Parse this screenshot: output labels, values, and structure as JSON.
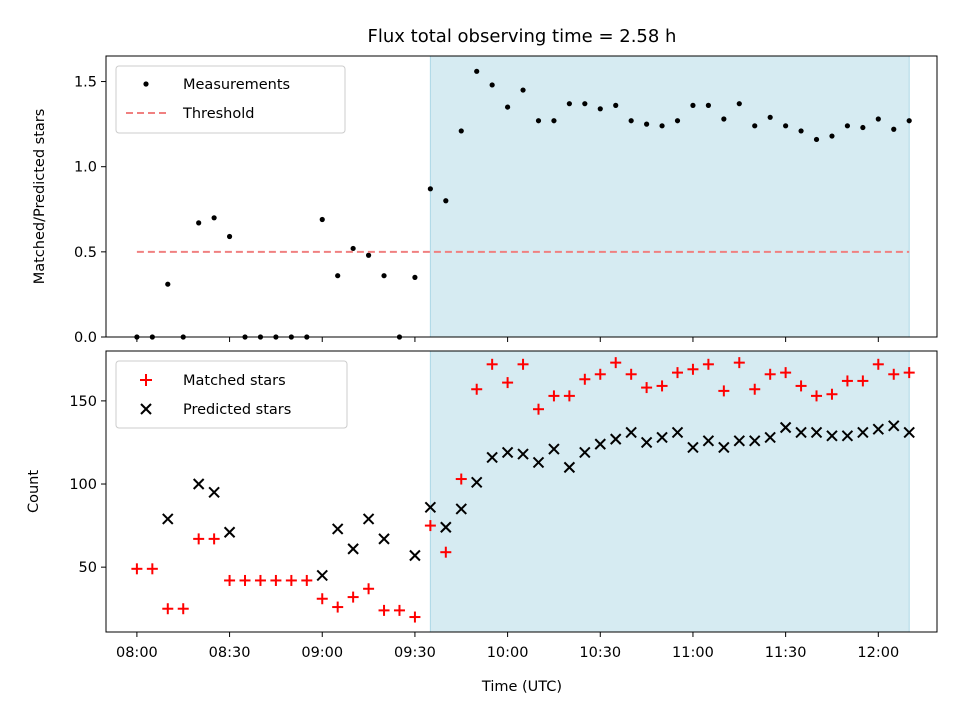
{
  "chart_data": {
    "type": "scatter",
    "title": "Flux total observing time = 2.58 h",
    "xlabel": "Time (UTC)",
    "x_ticks": [
      "08:00",
      "08:30",
      "09:00",
      "09:30",
      "10:00",
      "10:30",
      "11:00",
      "11:30",
      "12:00"
    ],
    "shaded_interval": {
      "start": "09:35",
      "end": "12:10",
      "color": "#add8e6"
    },
    "panels": [
      {
        "name": "ratio",
        "ylabel": "Matched/Predicted stars",
        "ylim": [
          0,
          1.65
        ],
        "y_ticks": [
          0.0,
          0.5,
          1.0,
          1.5
        ],
        "y_tick_labels": [
          "0.0",
          "0.5",
          "1.0",
          "1.5"
        ],
        "legend": "top-left",
        "series": [
          {
            "name": "Measurements",
            "marker": "dot",
            "color": "#000000",
            "x": [
              "08:00",
              "08:05",
              "08:10",
              "08:15",
              "08:20",
              "08:25",
              "08:30",
              "08:35",
              "08:40",
              "08:45",
              "08:50",
              "08:55",
              "09:00",
              "09:05",
              "09:10",
              "09:15",
              "09:20",
              "09:25",
              "09:30",
              "09:35",
              "09:40",
              "09:45",
              "09:50",
              "09:55",
              "10:00",
              "10:05",
              "10:10",
              "10:15",
              "10:20",
              "10:25",
              "10:30",
              "10:35",
              "10:40",
              "10:45",
              "10:50",
              "10:55",
              "11:00",
              "11:05",
              "11:10",
              "11:15",
              "11:20",
              "11:25",
              "11:30",
              "11:35",
              "11:40",
              "11:45",
              "11:50",
              "11:55",
              "12:00",
              "12:05",
              "12:10"
            ],
            "y": [
              0.0,
              0.0,
              0.31,
              0.0,
              0.67,
              0.7,
              0.59,
              0.0,
              0.0,
              0.0,
              0.0,
              0.0,
              0.69,
              0.36,
              0.52,
              0.48,
              0.36,
              0.0,
              0.35,
              0.87,
              0.8,
              1.21,
              1.56,
              1.48,
              1.35,
              1.45,
              1.27,
              1.27,
              1.37,
              1.37,
              1.34,
              1.36,
              1.27,
              1.25,
              1.24,
              1.27,
              1.36,
              1.36,
              1.28,
              1.37,
              1.24,
              1.29,
              1.24,
              1.21,
              1.16,
              1.18,
              1.24,
              1.23,
              1.28,
              1.22,
              1.27
            ]
          },
          {
            "name": "Threshold",
            "marker": "dashed-line",
            "color": "#f08080",
            "x": [
              "08:00",
              "12:10"
            ],
            "y": [
              0.5,
              0.5
            ]
          }
        ]
      },
      {
        "name": "counts",
        "ylabel": "Count",
        "ylim": [
          11,
          180
        ],
        "y_ticks": [
          50,
          100,
          150
        ],
        "y_tick_labels": [
          "50",
          "100",
          "150"
        ],
        "legend": "top-left",
        "series": [
          {
            "name": "Matched stars",
            "marker": "plus",
            "color": "#ff0000",
            "x": [
              "08:00",
              "08:05",
              "08:10",
              "08:15",
              "08:20",
              "08:25",
              "08:30",
              "08:35",
              "08:40",
              "08:45",
              "08:50",
              "08:55",
              "09:00",
              "09:05",
              "09:10",
              "09:15",
              "09:20",
              "09:25",
              "09:30",
              "09:35",
              "09:40",
              "09:45",
              "09:50",
              "09:55",
              "10:00",
              "10:05",
              "10:10",
              "10:15",
              "10:20",
              "10:25",
              "10:30",
              "10:35",
              "10:40",
              "10:45",
              "10:50",
              "10:55",
              "11:00",
              "11:05",
              "11:10",
              "11:15",
              "11:20",
              "11:25",
              "11:30",
              "11:35",
              "11:40",
              "11:45",
              "11:50",
              "11:55",
              "12:00",
              "12:05",
              "12:10"
            ],
            "y": [
              49,
              49,
              25,
              25,
              67,
              67,
              42,
              42,
              42,
              42,
              42,
              42,
              31,
              26,
              32,
              37,
              24,
              24,
              20,
              75,
              59,
              103,
              157,
              172,
              161,
              172,
              145,
              153,
              153,
              163,
              166,
              173,
              166,
              158,
              159,
              167,
              169,
              172,
              156,
              173,
              157,
              166,
              167,
              159,
              153,
              154,
              162,
              162,
              172,
              166,
              167
            ]
          },
          {
            "name": "Predicted stars",
            "marker": "x",
            "color": "#000000",
            "x": [
              "08:10",
              "08:20",
              "08:25",
              "08:30",
              "09:00",
              "09:05",
              "09:10",
              "09:15",
              "09:20",
              "09:30",
              "09:35",
              "09:40",
              "09:45",
              "09:50",
              "09:55",
              "10:00",
              "10:05",
              "10:10",
              "10:15",
              "10:20",
              "10:25",
              "10:30",
              "10:35",
              "10:40",
              "10:45",
              "10:50",
              "10:55",
              "11:00",
              "11:05",
              "11:10",
              "11:15",
              "11:20",
              "11:25",
              "11:30",
              "11:35",
              "11:40",
              "11:45",
              "11:50",
              "11:55",
              "12:00",
              "12:05",
              "12:10"
            ],
            "y": [
              79,
              100,
              95,
              71,
              45,
              73,
              61,
              79,
              67,
              57,
              86,
              74,
              85,
              101,
              116,
              119,
              118,
              113,
              121,
              110,
              119,
              124,
              127,
              131,
              125,
              128,
              131,
              122,
              126,
              122,
              126,
              126,
              128,
              134,
              131,
              131,
              129,
              129,
              131,
              133,
              135,
              131
            ]
          }
        ]
      }
    ]
  }
}
